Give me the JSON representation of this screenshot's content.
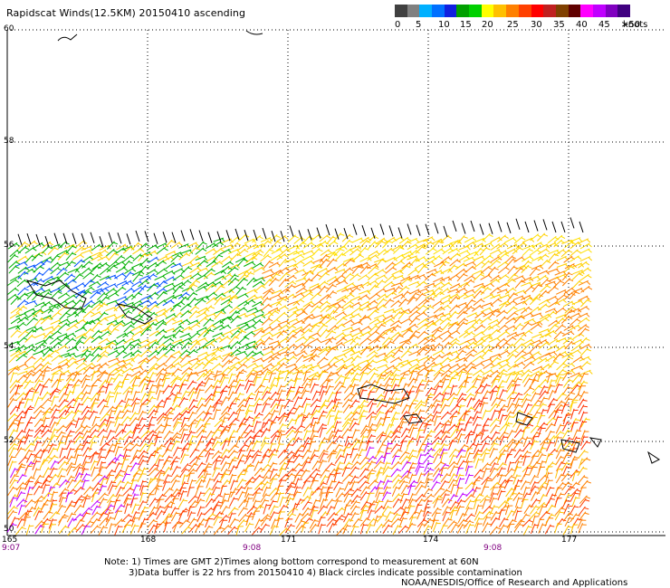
{
  "title": "Rapidscat Winds(12.5KM) 20150410 ascending",
  "colorbar": {
    "labels": [
      "0",
      "5",
      "10",
      "15",
      "20",
      "25",
      "30",
      "35",
      "40",
      "45",
      ">50"
    ],
    "unit": "knots",
    "colors": [
      "#404040",
      "#808080",
      "#00b0ff",
      "#0070ff",
      "#1020e0",
      "#00a000",
      "#00d000",
      "#ffff00",
      "#ffc000",
      "#ff8000",
      "#ff4000",
      "#ff0000",
      "#c02020",
      "#804000",
      "#600000",
      "#ff00ff",
      "#c000ff",
      "#8000c0",
      "#400080"
    ]
  },
  "latitude_labels": [
    "60",
    "58",
    "56",
    "54",
    "52",
    "50"
  ],
  "longitude_labels": [
    "165",
    "168",
    "171",
    "174",
    "177"
  ],
  "time_labels": [
    "9:07",
    "9:08",
    "9:08"
  ],
  "notes": {
    "line1": "Note: 1) Times are GMT 2)Times along bottom correspond to measurement at 60N",
    "line2": "3)Data buffer is 22 hrs from 20150410 4) Black circles indicate possible contamination",
    "credit": "NOAA/NESDIS/Office of Research and Applications"
  }
}
